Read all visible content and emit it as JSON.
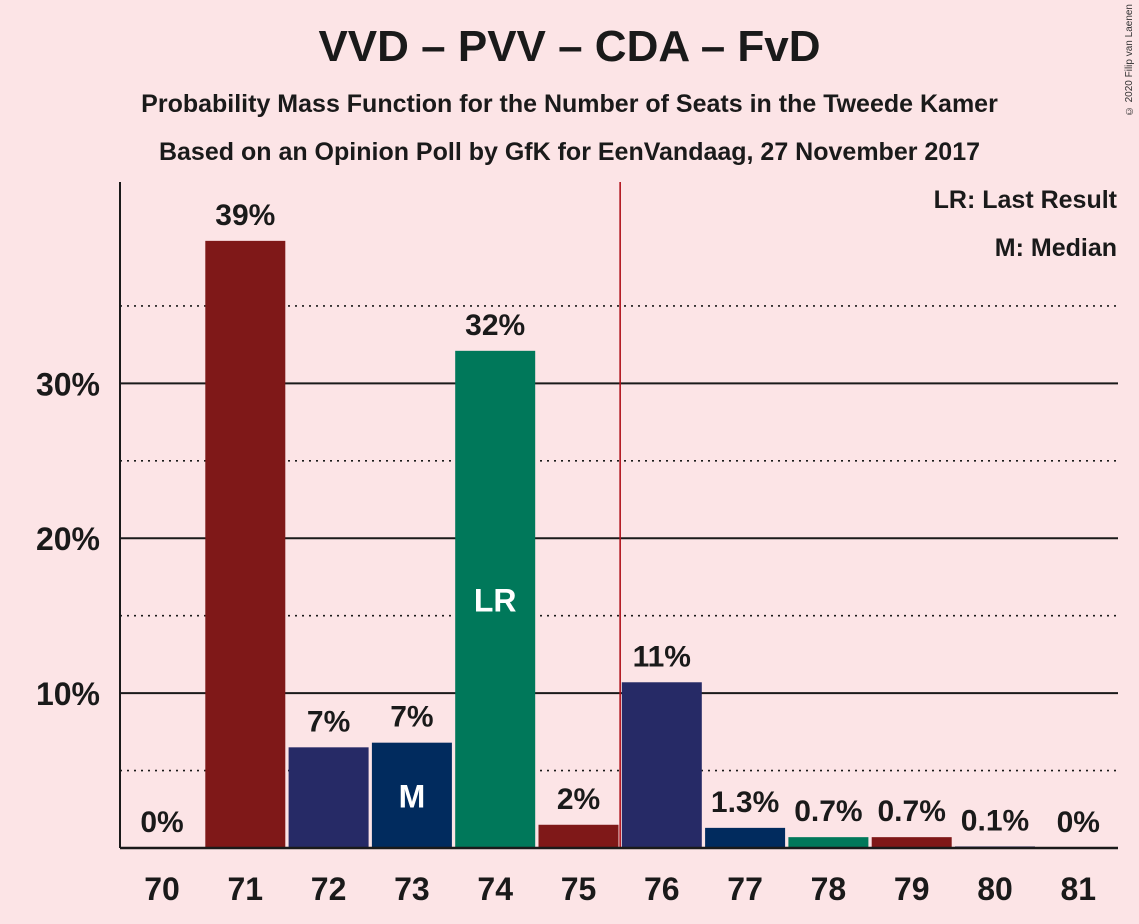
{
  "chart_data": {
    "type": "bar",
    "title": "VVD – PVV – CDA – FvD",
    "subtitle": "Probability Mass Function for the Number of Seats in the Tweede Kamer",
    "subtitle2": "Based on an Opinion Poll by GfK for EenVandaag, 27 November 2017",
    "copyright": "© 2020 Filip van Laenen",
    "legend": {
      "lr": "LR: Last Result",
      "m": "M: Median",
      "placement": "top-right"
    },
    "categories": [
      "70",
      "71",
      "72",
      "73",
      "74",
      "75",
      "76",
      "77",
      "78",
      "79",
      "80",
      "81"
    ],
    "values": [
      0,
      39.2,
      6.5,
      6.8,
      32.1,
      1.5,
      10.7,
      1.3,
      0.7,
      0.7,
      0.1,
      0
    ],
    "value_labels": [
      "0%",
      "39%",
      "7%",
      "7%",
      "32%",
      "2%",
      "11%",
      "1.3%",
      "0.7%",
      "0.7%",
      "0.1%",
      "0%"
    ],
    "bar_colors": [
      "#7f1818",
      "#7f1818",
      "#262a66",
      "#012b5e",
      "#00785a",
      "#7f1818",
      "#262a66",
      "#012b5e",
      "#00785a",
      "#7f1818",
      "#262a66",
      "#012b5e"
    ],
    "ylim": [
      0,
      43
    ],
    "y_ticks": [
      10,
      20,
      30
    ],
    "y_tick_labels": [
      "10%",
      "20%",
      "30%"
    ],
    "y_minor_ticks": [
      5,
      15,
      25,
      35
    ],
    "grid": true,
    "majority_line_after_category": "75",
    "majority_line_color": "#b0121b",
    "last_result_category": "74",
    "last_result_label": "LR",
    "median_category": "73",
    "median_label": "M"
  }
}
